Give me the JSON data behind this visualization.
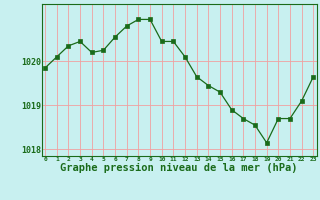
{
  "x": [
    0,
    1,
    2,
    3,
    4,
    5,
    6,
    7,
    8,
    9,
    10,
    11,
    12,
    13,
    14,
    15,
    16,
    17,
    18,
    19,
    20,
    21,
    22,
    23
  ],
  "y": [
    1019.85,
    1020.1,
    1020.35,
    1020.45,
    1020.2,
    1020.25,
    1020.55,
    1020.8,
    1020.95,
    1020.95,
    1020.45,
    1020.45,
    1020.1,
    1019.65,
    1019.45,
    1019.3,
    1018.9,
    1018.7,
    1018.55,
    1018.15,
    1018.7,
    1018.7,
    1019.1,
    1019.65
  ],
  "line_color": "#1a6b1a",
  "marker_color": "#1a6b1a",
  "bg_color": "#c8f0f0",
  "grid_color": "#f0a0a0",
  "text_color": "#1a6b1a",
  "ylim": [
    1017.85,
    1021.3
  ],
  "yticks": [
    1018,
    1019,
    1020
  ],
  "xlim": [
    -0.3,
    23.3
  ],
  "title": "Graphe pression niveau de la mer (hPa)"
}
